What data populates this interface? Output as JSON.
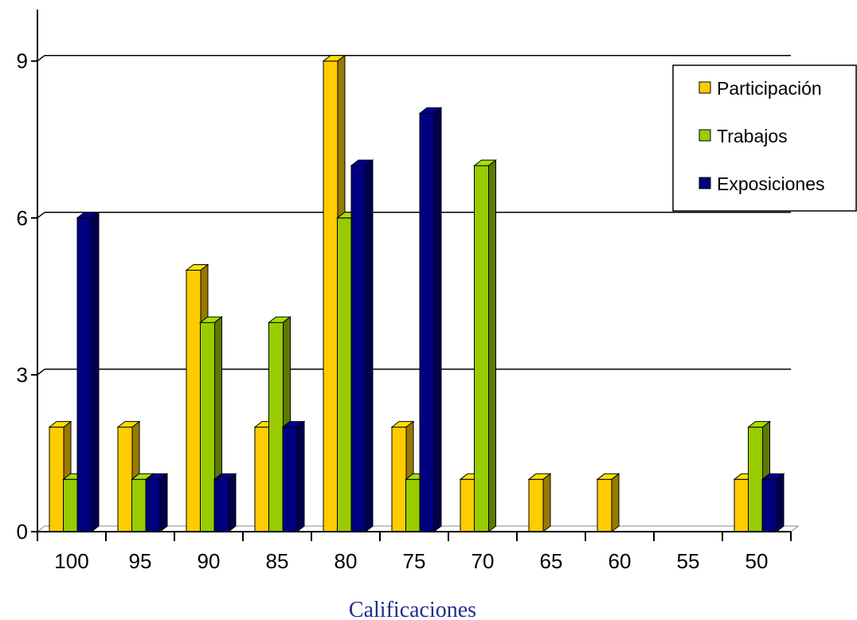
{
  "chart_data": {
    "type": "bar",
    "title": "",
    "xlabel": "Calificaciones",
    "ylabel": "",
    "categories": [
      "100",
      "95",
      "90",
      "85",
      "80",
      "75",
      "70",
      "65",
      "60",
      "55",
      "50"
    ],
    "series": [
      {
        "name": "Participación",
        "color": "#FFCC00",
        "values": [
          2,
          2,
          5,
          2,
          9,
          2,
          1,
          1,
          1,
          0,
          1
        ]
      },
      {
        "name": "Trabajos",
        "color": "#99CC00",
        "values": [
          1,
          1,
          4,
          4,
          6,
          1,
          7,
          0,
          0,
          0,
          2
        ]
      },
      {
        "name": "Exposiciones",
        "color": "#000080",
        "values": [
          6,
          1,
          1,
          2,
          7,
          8,
          0,
          0,
          0,
          0,
          1
        ]
      }
    ],
    "yticks": [
      0,
      3,
      6,
      9
    ],
    "ylim": [
      0,
      10
    ],
    "grid": true,
    "legend": "top-right",
    "style": "3d-column"
  }
}
